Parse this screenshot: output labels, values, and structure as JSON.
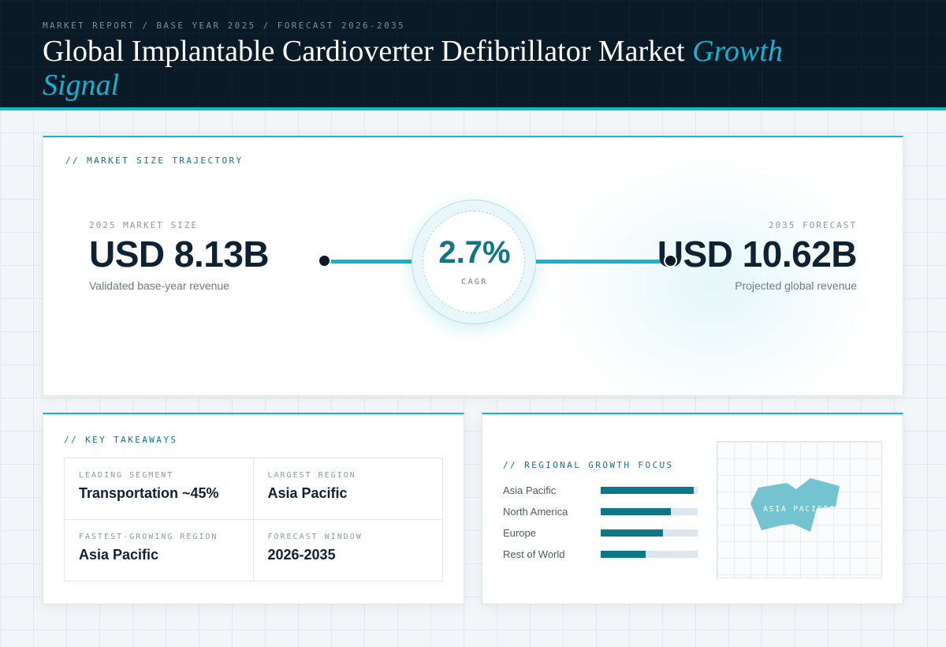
{
  "header": {
    "eyebrow": "MARKET REPORT / BASE YEAR 2025 / FORECAST 2026-2035",
    "title_main": "Global Implantable Cardioverter Defibrillator Market",
    "title_accent": "Growth Signal"
  },
  "trajectory": {
    "section_label": "// MARKET SIZE TRAJECTORY",
    "start": {
      "label": "2025 MARKET SIZE",
      "value": "USD 8.13B",
      "caption": "Validated base-year revenue"
    },
    "end": {
      "label": "2035 FORECAST",
      "value": "USD 10.62B",
      "caption": "Projected global revenue"
    },
    "cagr": {
      "value": "2.7%",
      "label": "CAGR"
    }
  },
  "takeaways": {
    "section_label": "// KEY TAKEAWAYS",
    "items": [
      {
        "label": "LEADING SEGMENT",
        "value": "Transportation ~45%"
      },
      {
        "label": "LARGEST REGION",
        "value": "Asia Pacific"
      },
      {
        "label": "FASTEST-GROWING REGION",
        "value": "Asia Pacific"
      },
      {
        "label": "FORECAST WINDOW",
        "value": "2026-2035"
      }
    ]
  },
  "regional": {
    "section_label": "// REGIONAL GROWTH FOCUS",
    "regions": [
      {
        "name": "Asia Pacific",
        "level": 0.96
      },
      {
        "name": "North America",
        "level": 0.72
      },
      {
        "name": "Europe",
        "level": 0.64
      },
      {
        "name": "Rest of World",
        "level": 0.46
      }
    ],
    "map_label": "ASIA PACIFIC"
  },
  "colors": {
    "accent": "#14b4cf",
    "accent_dark": "#0f7686",
    "header_bg": "#0b1a27",
    "text_primary": "#0f2233",
    "map_shape": "#74c3d0"
  }
}
